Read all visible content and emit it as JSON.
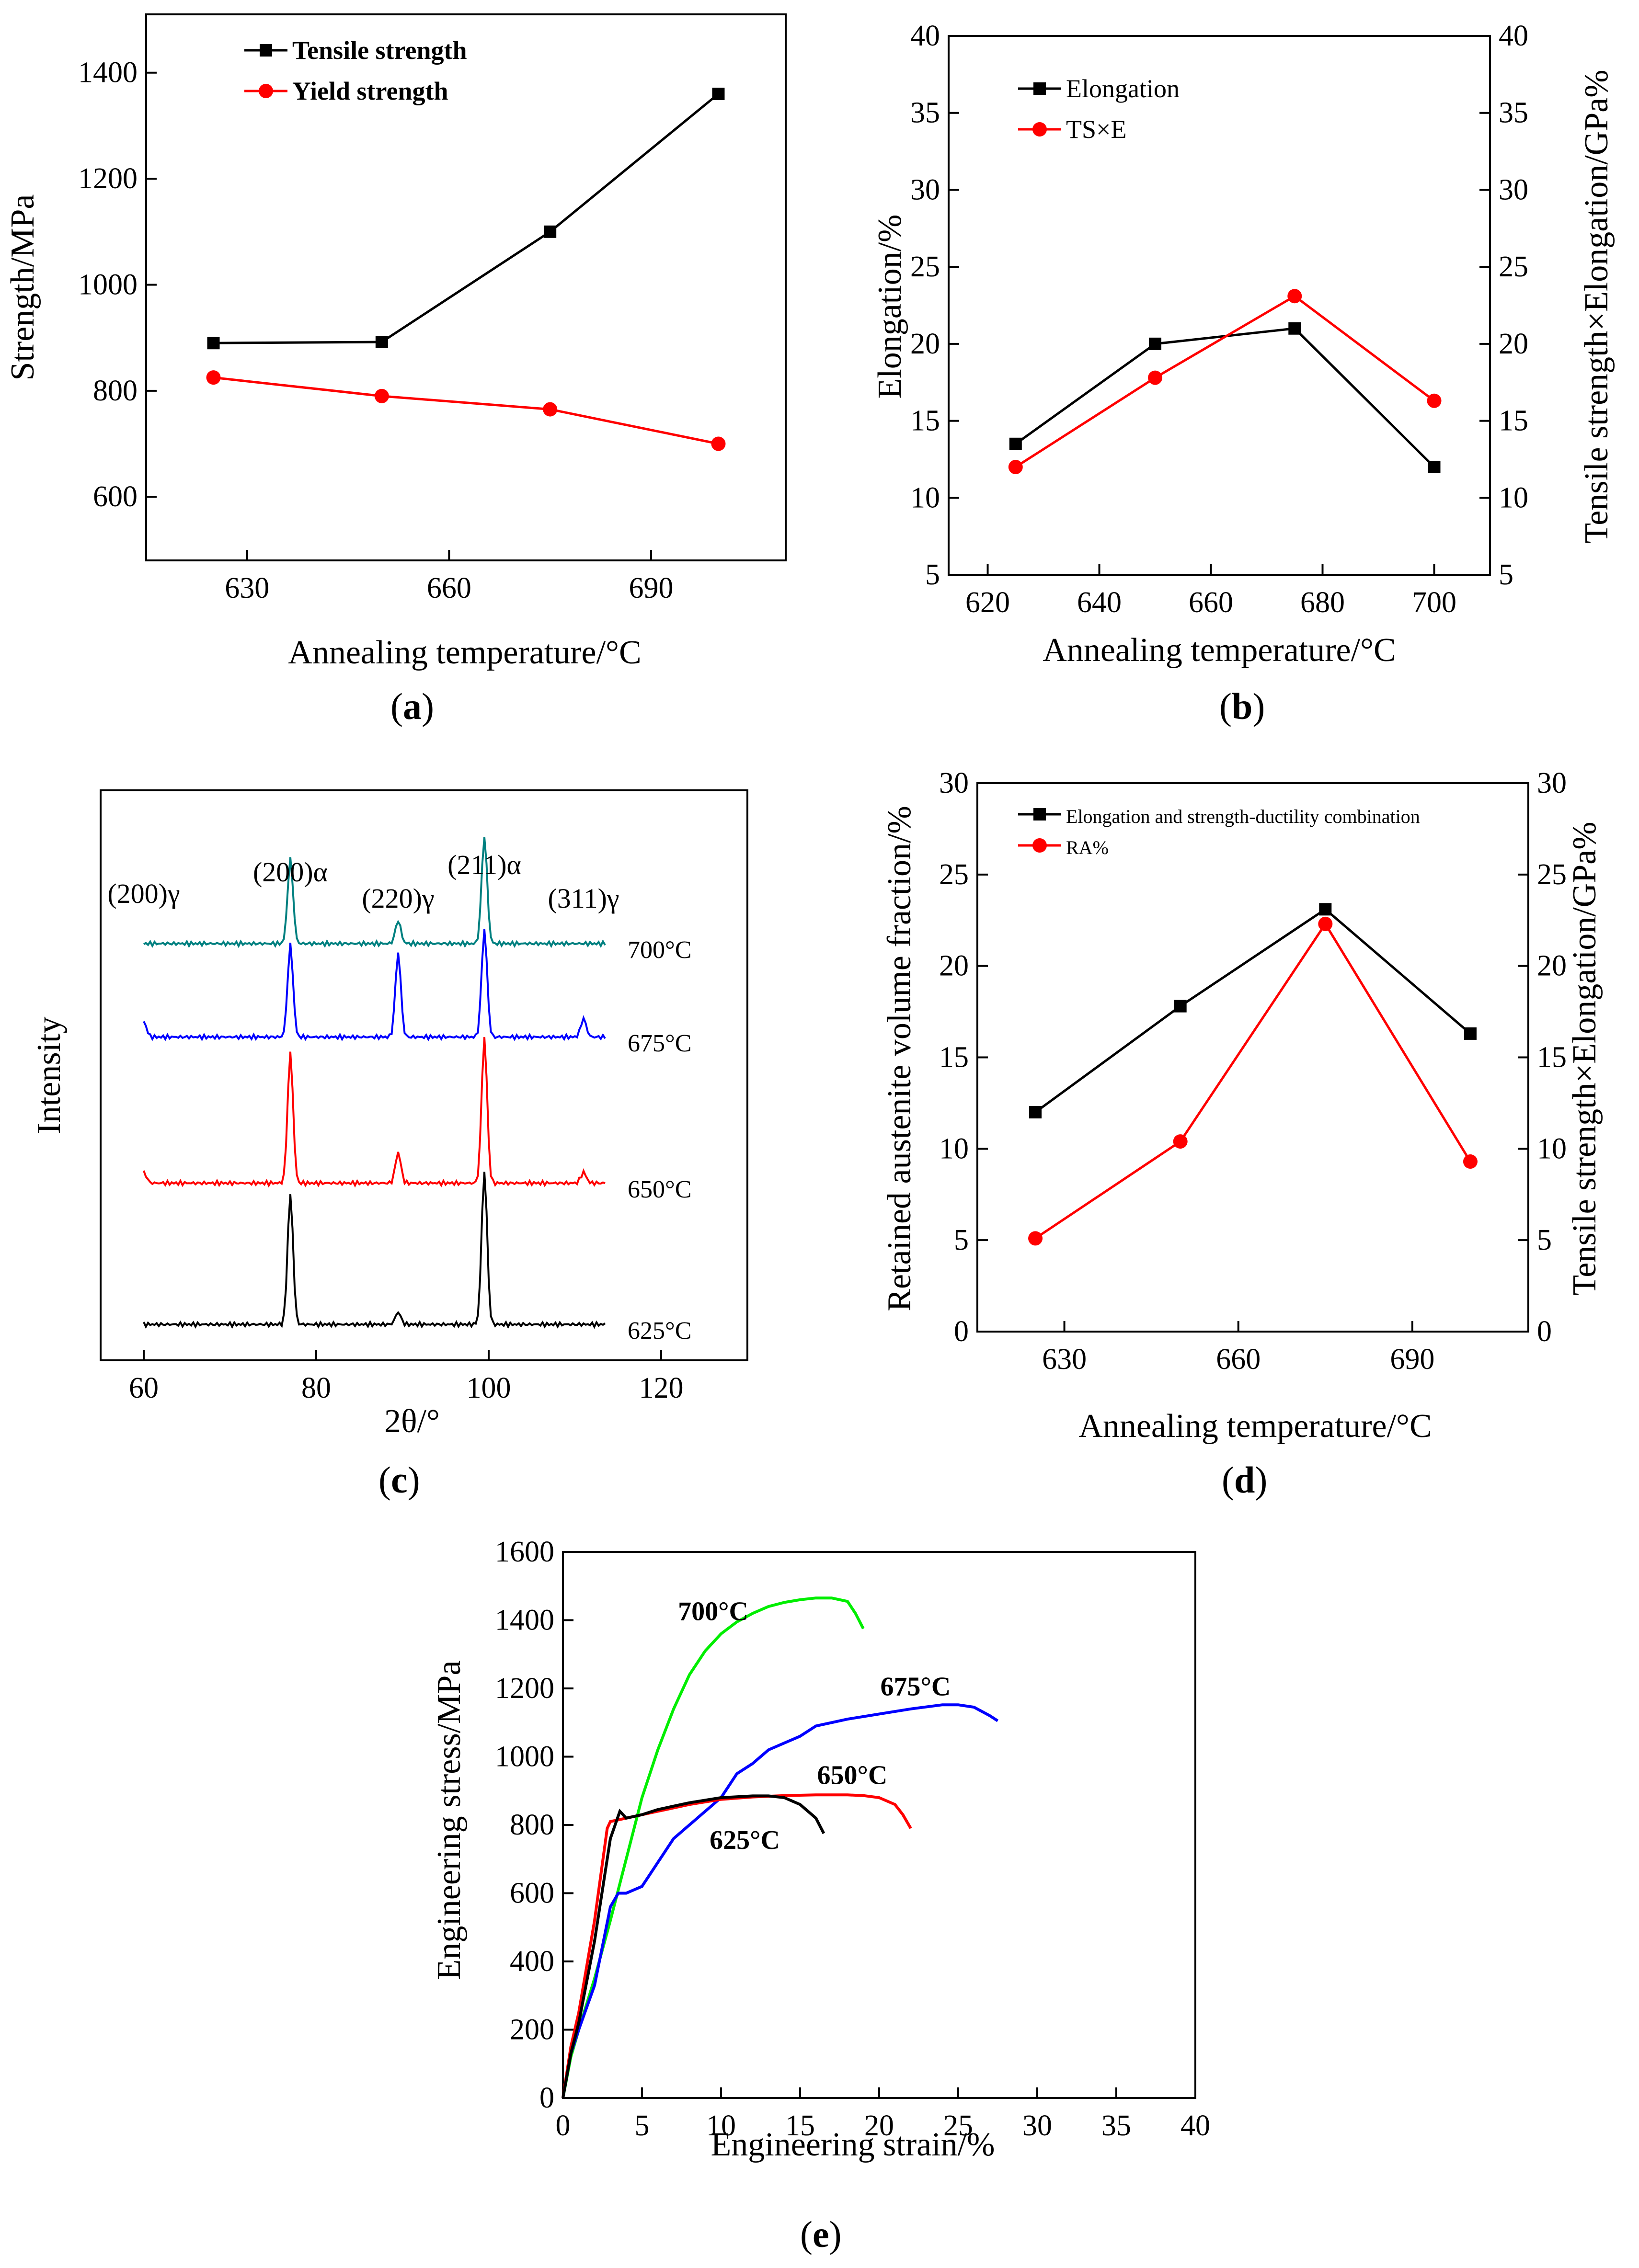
{
  "chart_data": [
    {
      "id": "a",
      "type": "line",
      "panel_label": "a",
      "xlabel": "Annealing temperature/°C",
      "ylabel": "Strength/MPa",
      "xlim": [
        615,
        710
      ],
      "ylim": [
        480,
        1510
      ],
      "xticks": [
        630,
        660,
        690
      ],
      "yticks": [
        600,
        800,
        1000,
        1200,
        1400
      ],
      "legend_position": "top-left",
      "series": [
        {
          "name": "Tensile strength",
          "color": "#000000",
          "marker": "square",
          "x": [
            625,
            650,
            675,
            700
          ],
          "y": [
            890,
            892,
            1100,
            1360
          ]
        },
        {
          "name": "Yield strength",
          "color": "#ff0000",
          "marker": "circle",
          "x": [
            625,
            650,
            675,
            700
          ],
          "y": [
            825,
            790,
            765,
            700
          ]
        }
      ]
    },
    {
      "id": "b",
      "type": "line",
      "panel_label": "b",
      "xlabel": "Annealing temperature/°C",
      "ylabel": "Elongation/%",
      "ylabel_right": "Tensile strength×Elongation/GPa%",
      "xlim": [
        613,
        710
      ],
      "ylim": [
        5,
        40
      ],
      "xticks": [
        620,
        640,
        660,
        680,
        700
      ],
      "yticks": [
        5,
        10,
        15,
        20,
        25,
        30,
        35,
        40
      ],
      "legend_position": "top-left",
      "series": [
        {
          "name": "Elongation",
          "color": "#000000",
          "marker": "square",
          "x": [
            625,
            650,
            675,
            700
          ],
          "y": [
            13.5,
            20.0,
            21.0,
            12.0
          ]
        },
        {
          "name": "TS×E",
          "color": "#ff0000",
          "marker": "circle",
          "x": [
            625,
            650,
            675,
            700
          ],
          "y": [
            12.0,
            17.8,
            23.1,
            16.3
          ]
        }
      ]
    },
    {
      "id": "c",
      "type": "line",
      "panel_label": "c",
      "xlabel": "2θ/°",
      "ylabel": "Intensity",
      "xlim": [
        55,
        130
      ],
      "xticks": [
        60,
        80,
        100,
        120
      ],
      "peak_labels": [
        {
          "text": "(200)γ",
          "x": 60
        },
        {
          "text": "(200)α",
          "x": 77
        },
        {
          "text": "(220)γ",
          "x": 89.5
        },
        {
          "text": "(211)α",
          "x": 99.5
        },
        {
          "text": "(311)γ",
          "x": 111
        }
      ],
      "series": [
        {
          "name": "700°C",
          "color": "#008080",
          "peaks": [
            {
              "x": 77,
              "h": 0.55
            },
            {
              "x": 89.5,
              "h": 0.15
            },
            {
              "x": 99.5,
              "h": 0.7
            }
          ]
        },
        {
          "name": "675°C",
          "color": "#0000ff",
          "peaks": [
            {
              "x": 60,
              "h": 0.1
            },
            {
              "x": 77,
              "h": 0.6
            },
            {
              "x": 89.5,
              "h": 0.55
            },
            {
              "x": 99.5,
              "h": 0.7
            },
            {
              "x": 111,
              "h": 0.12
            }
          ]
        },
        {
          "name": "650°C",
          "color": "#ff0000",
          "peaks": [
            {
              "x": 60,
              "h": 0.07
            },
            {
              "x": 77,
              "h": 0.85
            },
            {
              "x": 89.5,
              "h": 0.2
            },
            {
              "x": 99.5,
              "h": 0.95
            },
            {
              "x": 111,
              "h": 0.07
            }
          ]
        },
        {
          "name": "625°C",
          "color": "#000000",
          "peaks": [
            {
              "x": 77,
              "h": 0.85
            },
            {
              "x": 89.5,
              "h": 0.08
            },
            {
              "x": 99.5,
              "h": 1.0
            }
          ]
        }
      ]
    },
    {
      "id": "d",
      "type": "line",
      "panel_label": "d",
      "xlabel": "Annealing temperature/°C",
      "ylabel": "Retained austenite volume fraction/%",
      "ylabel_right": "Tensile strength×Elongation/GPa%",
      "xlim": [
        615,
        710
      ],
      "ylim": [
        0,
        30
      ],
      "xticks": [
        630,
        660,
        690
      ],
      "yticks": [
        0,
        5,
        10,
        15,
        20,
        25,
        30
      ],
      "legend_position": "top-left",
      "series": [
        {
          "name": "Elongation and strength-ductility combination",
          "color": "#000000",
          "marker": "square",
          "x": [
            625,
            650,
            675,
            700
          ],
          "y": [
            12.0,
            17.8,
            23.1,
            16.3
          ]
        },
        {
          "name": "RA%",
          "color": "#ff0000",
          "marker": "circle",
          "x": [
            625,
            650,
            675,
            700
          ],
          "y": [
            5.1,
            10.4,
            22.3,
            9.3
          ]
        }
      ]
    },
    {
      "id": "e",
      "type": "line",
      "panel_label": "e",
      "xlabel": "Engineering strain/%",
      "ylabel": "Engineering stress/MPa",
      "xlim": [
        0,
        40
      ],
      "ylim": [
        0,
        1600
      ],
      "xticks": [
        0,
        5,
        10,
        15,
        20,
        25,
        30,
        35,
        40
      ],
      "yticks": [
        0,
        200,
        400,
        600,
        800,
        1000,
        1200,
        1400,
        1600
      ],
      "series": [
        {
          "name": "700°C",
          "color": "#00ee00",
          "x": [
            0,
            0.5,
            1,
            2,
            3,
            4,
            5,
            6,
            7,
            8,
            9,
            10,
            11,
            12,
            13,
            14,
            15,
            16,
            17,
            18,
            18.5,
            19
          ],
          "y": [
            0,
            120,
            200,
            350,
            520,
            700,
            880,
            1020,
            1140,
            1240,
            1310,
            1360,
            1395,
            1420,
            1440,
            1452,
            1460,
            1465,
            1465,
            1455,
            1420,
            1375
          ]
        },
        {
          "name": "675°C",
          "color": "#0000ff",
          "x": [
            0,
            0.5,
            1,
            2,
            3,
            3.5,
            4,
            5,
            6,
            7,
            8,
            9,
            10,
            11,
            12,
            13,
            14,
            15,
            16,
            17,
            18,
            20,
            22,
            24,
            25,
            26,
            27,
            27.5
          ],
          "y": [
            0,
            130,
            200,
            330,
            560,
            600,
            600,
            620,
            690,
            760,
            800,
            840,
            880,
            950,
            980,
            1020,
            1040,
            1060,
            1090,
            1100,
            1110,
            1125,
            1140,
            1152,
            1152,
            1145,
            1120,
            1105
          ]
        },
        {
          "name": "650°C",
          "color": "#ff0000",
          "x": [
            0,
            0.5,
            1,
            2,
            2.8,
            3,
            4,
            6,
            8,
            10,
            12,
            14,
            16,
            18,
            19,
            20,
            21,
            21.5,
            22
          ],
          "y": [
            0,
            150,
            250,
            520,
            790,
            810,
            820,
            840,
            860,
            875,
            882,
            886,
            888,
            888,
            886,
            880,
            860,
            830,
            790
          ]
        },
        {
          "name": "625°C",
          "color": "#000000",
          "x": [
            0,
            0.5,
            1,
            2,
            3,
            3.6,
            4,
            5,
            6,
            8,
            10,
            12,
            13,
            14,
            15,
            16,
            16.5
          ],
          "y": [
            0,
            130,
            220,
            460,
            760,
            840,
            820,
            830,
            845,
            865,
            880,
            885,
            885,
            880,
            860,
            820,
            775
          ]
        }
      ],
      "annotations": [
        {
          "text": "700°C",
          "x": 9.5,
          "y": 1400
        },
        {
          "text": "675°C",
          "x": 22.3,
          "y": 1180
        },
        {
          "text": "650°C",
          "x": 18.3,
          "y": 920
        },
        {
          "text": "625°C",
          "x": 11.5,
          "y": 730
        }
      ]
    }
  ]
}
